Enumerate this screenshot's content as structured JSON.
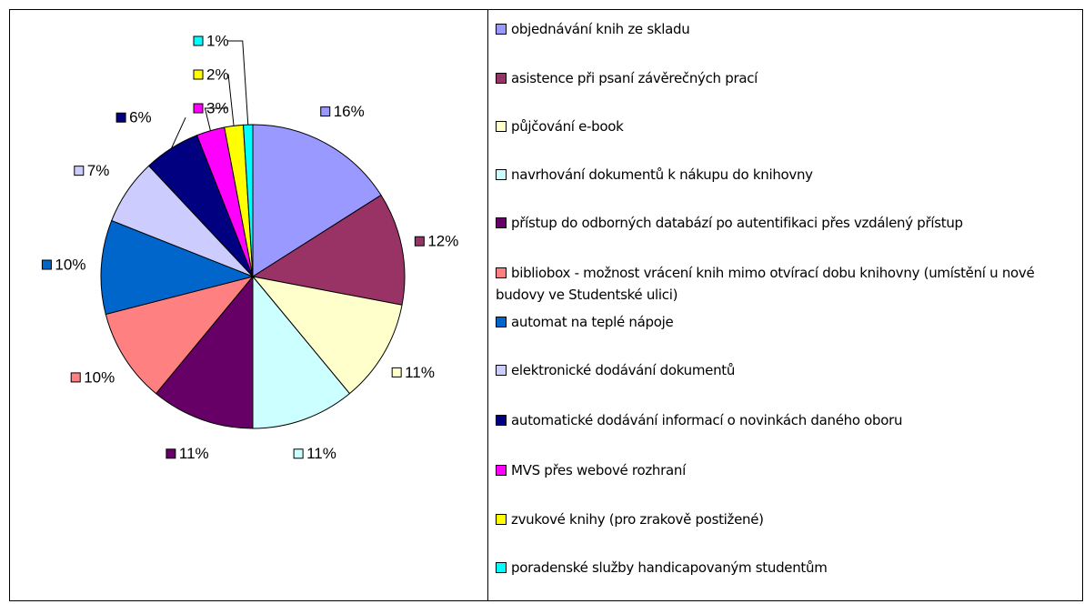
{
  "chart_data": {
    "type": "pie",
    "categories": [
      "objednávání knih ze skladu",
      "asistence při psaní závěrečných prací",
      "půjčování e-book",
      "navrhování dokumentů k nákupu do knihovny",
      "přístup do odborných databází po autentifikaci přes vzdálený přístup",
      "bibliobox - možnost vrácení knih mimo otvírací dobu knihovny (umístění u nové budovy ve Studentské ulici)",
      "automat na teplé nápoje",
      "elektronické dodávání dokumentů",
      "automatické dodávání informací o novinkách daného oboru",
      "MVS přes webové rozhraní",
      "zvukové knihy (pro zrakově postižené)",
      "poradenské služby handicapovaným studentům"
    ],
    "values": [
      16,
      12,
      11,
      11,
      11,
      10,
      10,
      7,
      6,
      3,
      2,
      1
    ],
    "value_labels": [
      "16%",
      "12%",
      "11%",
      "11%",
      "11%",
      "10%",
      "10%",
      "7%",
      "6%",
      "3%",
      "2%",
      "1%"
    ],
    "colors": [
      "#9999ff",
      "#993366",
      "#ffffcc",
      "#ccffff",
      "#660066",
      "#ff8080",
      "#0066cc",
      "#ccccff",
      "#000080",
      "#ff00ff",
      "#ffff00",
      "#00ffff"
    ],
    "legend": "right"
  }
}
